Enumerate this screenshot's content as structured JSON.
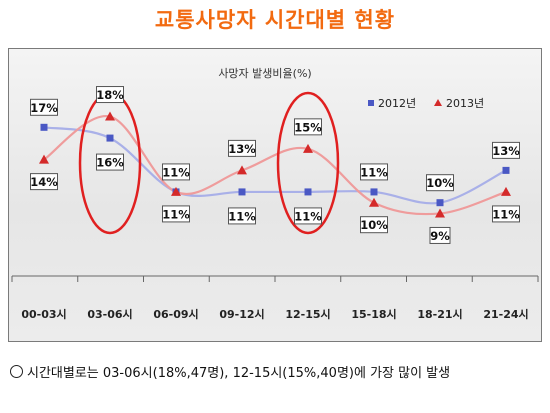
{
  "title": "교통사망자 시간대별 현황",
  "note": "시간대별로는 03-06시(18%,47명), 12-15시(15%,40명)에 가장 많이 발생",
  "colors": {
    "title": "#f26a10",
    "series2012": "#4a58c4",
    "series2013": "#d42a2a",
    "highlight": "#e02020"
  },
  "chart_data": {
    "type": "line",
    "title": "사망자 발생비율(%)",
    "categories": [
      "00-03시",
      "03-06시",
      "06-09시",
      "09-12시",
      "12-15시",
      "15-18시",
      "18-21시",
      "21-24시"
    ],
    "series": [
      {
        "name": "2012년",
        "values": [
          17,
          16,
          11,
          11,
          11,
          11,
          10,
          13
        ],
        "labels": [
          "17%",
          "16%",
          "11%",
          "11%",
          "11%",
          "11%",
          "10%",
          "13%"
        ]
      },
      {
        "name": "2013년",
        "values": [
          14,
          18,
          11,
          13,
          15,
          10,
          9,
          11
        ],
        "labels": [
          "14%",
          "18%",
          "11%",
          "13%",
          "15%",
          "10%",
          "9%",
          "11%"
        ]
      }
    ],
    "highlighted_categories": [
      "03-06시",
      "12-15시"
    ],
    "ylim": [
      7,
      20
    ],
    "legend": "top-right",
    "grid": false
  }
}
